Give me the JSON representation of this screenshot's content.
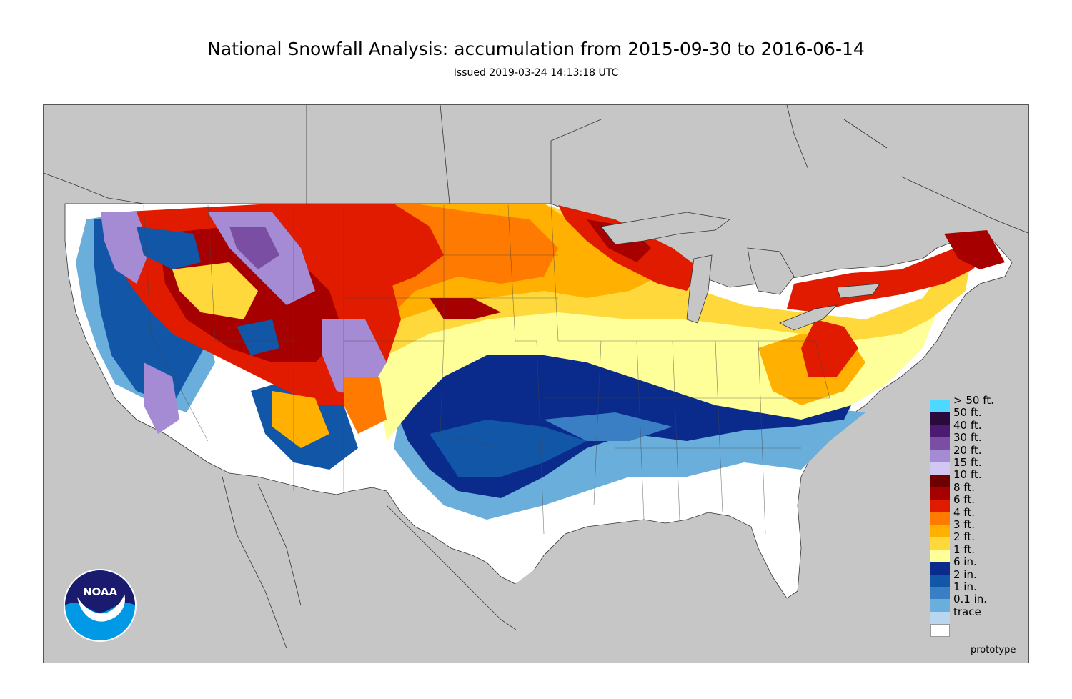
{
  "title": "National Snowfall Analysis: accumulation from 2015-09-30 to 2016-06-14",
  "subtitle": "Issued 2019-03-24 14:13:18 UTC",
  "footer_note": "prototype",
  "logo_text": "NOAA",
  "colors": {
    "background_land": "#c6c6c6",
    "borders": "#333333",
    "trace": "#ffffff"
  },
  "legend": [
    {
      "label": "> 50 ft.",
      "color": "#4dd9ff"
    },
    {
      "label": "50 ft.",
      "color": "#2a0a3d"
    },
    {
      "label": "40 ft.",
      "color": "#4c1a70"
    },
    {
      "label": "30 ft.",
      "color": "#7a4fa3"
    },
    {
      "label": "20 ft.",
      "color": "#a58ad4"
    },
    {
      "label": "15 ft.",
      "color": "#d2c6f2"
    },
    {
      "label": "10 ft.",
      "color": "#6e0000"
    },
    {
      "label": "8 ft.",
      "color": "#a60000"
    },
    {
      "label": "6 ft.",
      "color": "#e01b00"
    },
    {
      "label": "4 ft.",
      "color": "#ff7a00"
    },
    {
      "label": "3 ft.",
      "color": "#ffb000"
    },
    {
      "label": "2 ft.",
      "color": "#ffd93b"
    },
    {
      "label": "1 ft.",
      "color": "#ffff99"
    },
    {
      "label": "6 in.",
      "color": "#0a2b8c"
    },
    {
      "label": "2 in.",
      "color": "#1256a8"
    },
    {
      "label": "1 in.",
      "color": "#3a7fc4"
    },
    {
      "label": "0.1 in.",
      "color": "#6aaedc"
    },
    {
      "label": "trace",
      "color": "#b8d6ee"
    },
    {
      "label": "",
      "color": "#ffffff"
    }
  ]
}
